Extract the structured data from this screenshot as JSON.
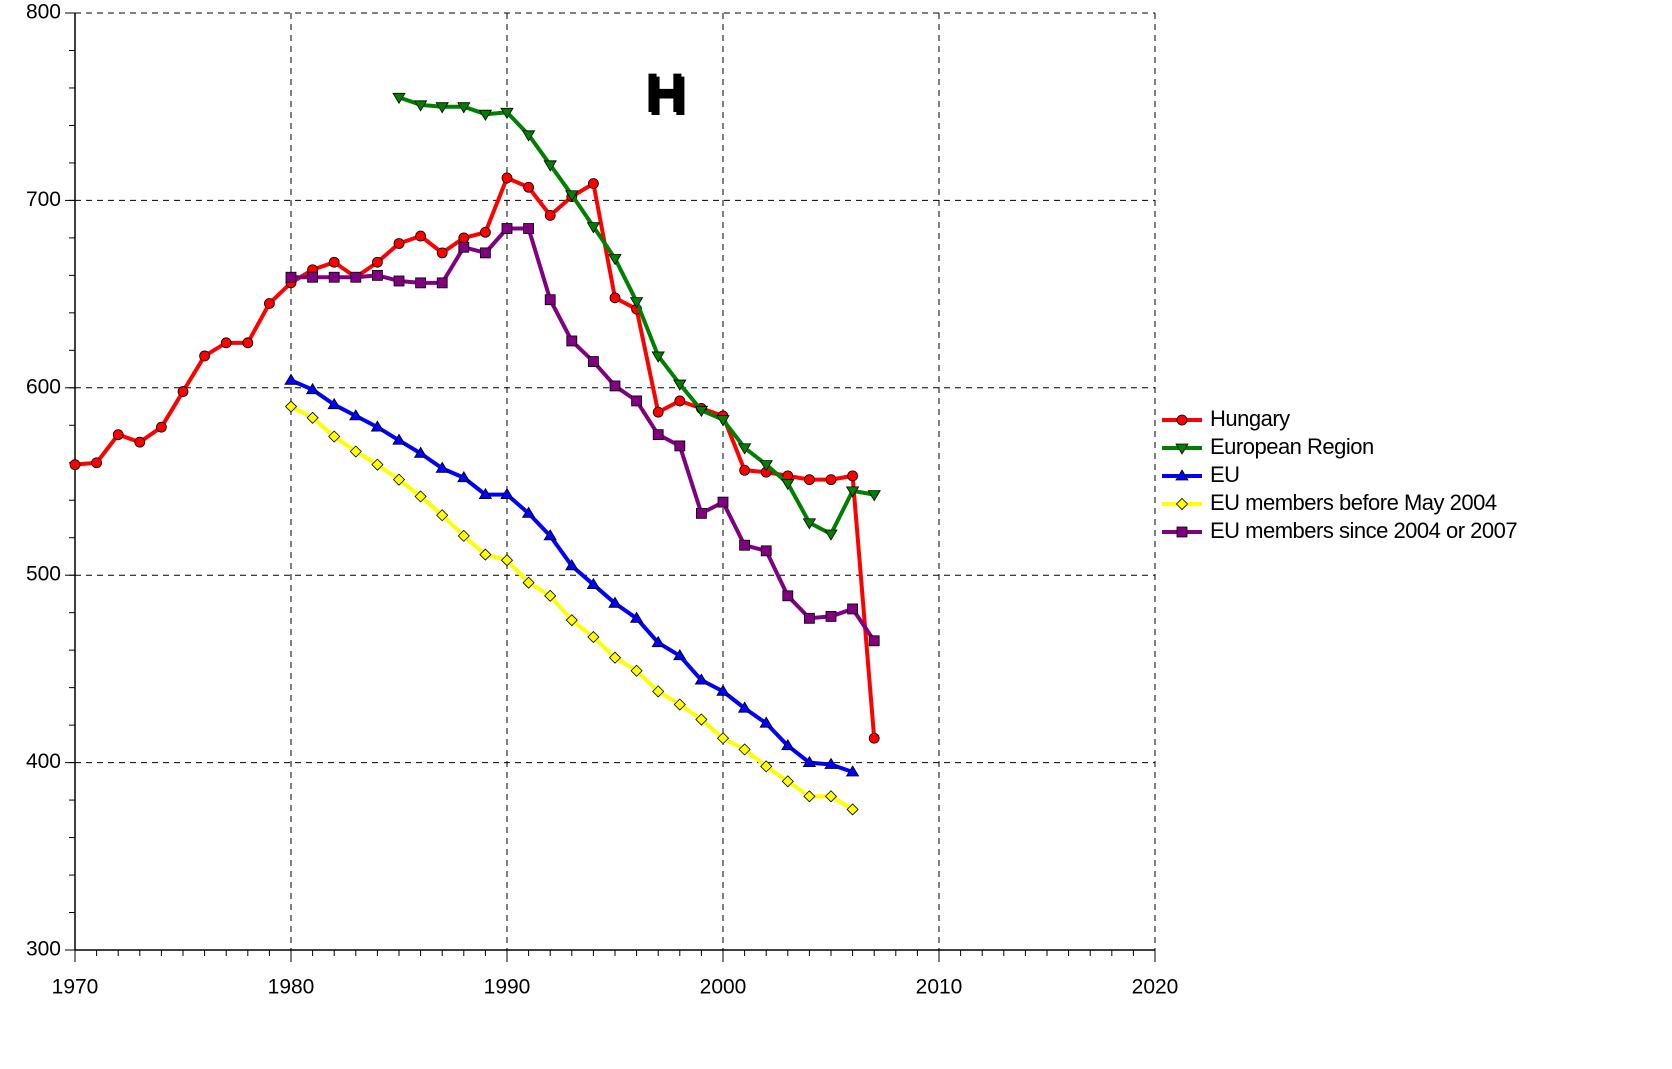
{
  "chart_data": {
    "type": "line",
    "annotation": "H",
    "annotation_color": "#ff3a10",
    "x": [
      1970,
      1971,
      1972,
      1973,
      1974,
      1975,
      1976,
      1977,
      1978,
      1979,
      1980,
      1981,
      1982,
      1983,
      1984,
      1985,
      1986,
      1987,
      1988,
      1989,
      1990,
      1991,
      1992,
      1993,
      1994,
      1995,
      1996,
      1997,
      1998,
      1999,
      2000,
      2001,
      2002,
      2003,
      2004,
      2005,
      2006,
      2007
    ],
    "series": [
      {
        "name": "Hungary",
        "color": "#ff0000",
        "marker": "circle",
        "marker_fill": "#ff0000",
        "values": [
          559,
          560,
          575,
          571,
          579,
          598,
          617,
          624,
          624,
          645,
          656,
          663,
          667,
          659,
          667,
          677,
          681,
          672,
          680,
          683,
          712,
          707,
          692,
          702,
          709,
          648,
          642,
          587,
          593,
          589,
          585,
          556,
          555,
          553,
          551,
          551,
          553,
          413
        ]
      },
      {
        "name": "European Region",
        "color": "#008000",
        "marker": "triangle-down",
        "marker_fill": "#008000",
        "values": [
          null,
          null,
          null,
          null,
          null,
          null,
          null,
          null,
          null,
          null,
          null,
          null,
          null,
          null,
          null,
          755,
          751,
          750,
          750,
          746,
          747,
          735,
          719,
          703,
          686,
          669,
          646,
          617,
          602,
          588,
          583,
          568,
          559,
          549,
          528,
          522,
          545,
          543
        ]
      },
      {
        "name": "EU",
        "color": "#0000ff",
        "marker": "triangle-up",
        "marker_fill": "#0000ff",
        "values": [
          null,
          null,
          null,
          null,
          null,
          null,
          null,
          null,
          null,
          null,
          604,
          599,
          591,
          585,
          579,
          572,
          565,
          557,
          552,
          543,
          543,
          533,
          521,
          505,
          495,
          485,
          477,
          464,
          457,
          444,
          438,
          429,
          421,
          409,
          400,
          399,
          395,
          null
        ]
      },
      {
        "name": "EU members before May 2004",
        "color": "#ffff00",
        "marker": "diamond",
        "marker_fill": "#ffff00",
        "values": [
          null,
          null,
          null,
          null,
          null,
          null,
          null,
          null,
          null,
          null,
          590,
          584,
          574,
          566,
          559,
          551,
          542,
          532,
          521,
          511,
          508,
          496,
          489,
          476,
          467,
          456,
          449,
          438,
          431,
          423,
          413,
          407,
          398,
          390,
          382,
          382,
          375,
          null
        ]
      },
      {
        "name": "EU members since 2004 or 2007",
        "color": "#800080",
        "marker": "square",
        "marker_fill": "#800080",
        "values": [
          null,
          null,
          null,
          null,
          null,
          null,
          null,
          null,
          null,
          null,
          659,
          659,
          659,
          659,
          660,
          657,
          656,
          656,
          675,
          672,
          685,
          685,
          647,
          625,
          614,
          601,
          593,
          575,
          569,
          533,
          539,
          516,
          513,
          489,
          477,
          478,
          482,
          465
        ]
      }
    ],
    "xlim": [
      1970,
      2020
    ],
    "xticks": [
      1970,
      1980,
      1990,
      2000,
      2010,
      2020
    ],
    "ylim": [
      300,
      800
    ],
    "yticks": [
      300,
      400,
      500,
      600,
      700,
      800
    ],
    "grid": true,
    "legend": "right"
  }
}
